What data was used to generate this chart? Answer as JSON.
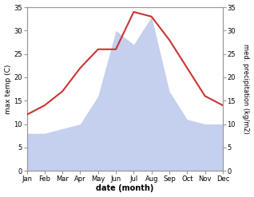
{
  "months": [
    "Jan",
    "Feb",
    "Mar",
    "Apr",
    "May",
    "Jun",
    "Jul",
    "Aug",
    "Sep",
    "Oct",
    "Nov",
    "Dec"
  ],
  "temperature": [
    12,
    14,
    17,
    22,
    26,
    26,
    34,
    33,
    28,
    22,
    16,
    14
  ],
  "precipitation": [
    8,
    8,
    9,
    10,
    16,
    30,
    27,
    33,
    17,
    11,
    10,
    10
  ],
  "temp_color": "#cc3333",
  "precip_color": "#c5d0ee",
  "left_ylabel": "max temp (C)",
  "right_ylabel": "med. precipitation (kg/m2)",
  "xlabel": "date (month)",
  "ylim": [
    0,
    35
  ],
  "yticks": [
    0,
    5,
    10,
    15,
    20,
    25,
    30,
    35
  ],
  "background_color": "#ffffff",
  "spine_color": "#999999",
  "tick_color": "#555555"
}
